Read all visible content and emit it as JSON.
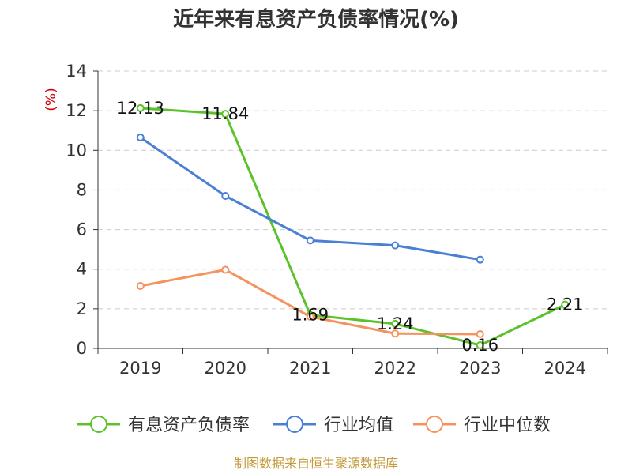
{
  "chart_data": {
    "type": "line",
    "title": "近年来有息资产负债率情况(%)",
    "ylabel": "(%)",
    "categories": [
      "2019",
      "2020",
      "2021",
      "2022",
      "2023",
      "2024"
    ],
    "ylim": [
      0,
      14
    ],
    "yticks": [
      "0",
      "2",
      "4",
      "6",
      "8",
      "10",
      "12",
      "14"
    ],
    "grid": true,
    "legend_position": "bottom",
    "series": [
      {
        "name": "有息资产负债率",
        "color": "#5cc12b",
        "values": [
          12.13,
          11.84,
          1.69,
          1.24,
          0.16,
          2.21
        ],
        "labels": [
          "12.13",
          "11.84",
          "1.69",
          "1.24",
          "0.16",
          "2.21"
        ]
      },
      {
        "name": "行业均值",
        "color": "#4a7fd6",
        "values": [
          10.65,
          7.7,
          5.45,
          5.2,
          4.48,
          null
        ]
      },
      {
        "name": "行业中位数",
        "color": "#f5925e",
        "values": [
          3.15,
          3.97,
          1.6,
          0.75,
          0.72,
          null
        ]
      }
    ]
  },
  "source": "制图数据来自恒生聚源数据库",
  "colors": {
    "unit_label": "#cc0000",
    "source": "#c49a3c",
    "grid": "#cccccc",
    "axis": "#333333"
  }
}
